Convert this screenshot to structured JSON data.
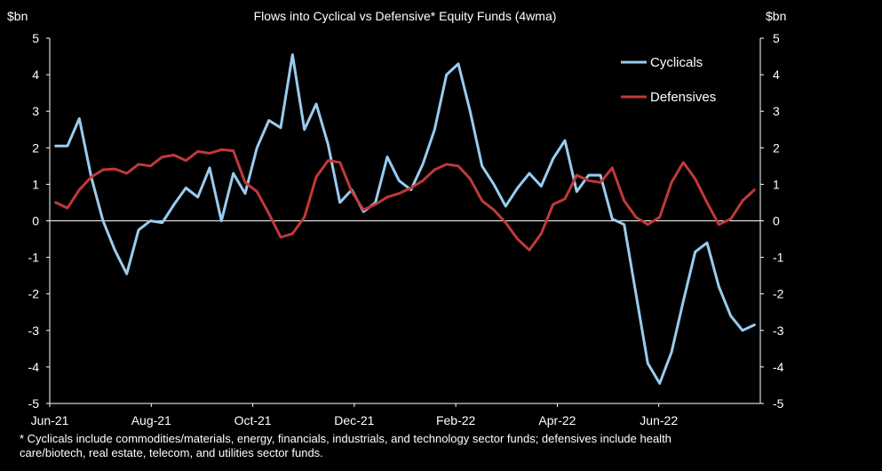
{
  "chart_data": {
    "type": "line",
    "title": "Flows into Cyclical vs Defensive*  Equity Funds (4wma)",
    "left_unit": "$bn",
    "right_unit": "$bn",
    "ylim": [
      -5,
      5
    ],
    "yticks": [
      5,
      4,
      3,
      2,
      1,
      0,
      -1,
      -2,
      -3,
      -4,
      -5
    ],
    "x_tick_labels": [
      "Jun-21",
      "Aug-21",
      "Oct-21",
      "Dec-21",
      "Feb-22",
      "Apr-22",
      "Jun-22"
    ],
    "grid": false,
    "legend_position": "top-right",
    "colors": {
      "Cyclicals": "#99ccee",
      "Defensives": "#c0393a"
    },
    "series": [
      {
        "name": "Cyclicals",
        "values": [
          2.05,
          2.05,
          2.8,
          1.2,
          0.0,
          -0.8,
          -1.45,
          -0.25,
          0.0,
          -0.05,
          0.45,
          0.9,
          0.65,
          1.45,
          0.0,
          1.3,
          0.75,
          2.0,
          2.75,
          2.55,
          4.55,
          2.5,
          3.2,
          2.1,
          0.5,
          0.85,
          0.25,
          0.5,
          1.75,
          1.1,
          0.85,
          1.55,
          2.5,
          4.0,
          4.3,
          3.0,
          1.5,
          1.0,
          0.4,
          0.9,
          1.3,
          0.95,
          1.7,
          2.2,
          0.8,
          1.25,
          1.25,
          0.05,
          -0.1,
          -2.0,
          -3.9,
          -4.45,
          -3.6,
          -2.2,
          -0.85,
          -0.6,
          -1.8,
          -2.6,
          -3.0,
          -2.85
        ]
      },
      {
        "name": "Defensives",
        "values": [
          0.5,
          0.35,
          0.85,
          1.2,
          1.4,
          1.42,
          1.3,
          1.55,
          1.5,
          1.75,
          1.8,
          1.65,
          1.9,
          1.85,
          1.95,
          1.92,
          1.05,
          0.8,
          0.2,
          -0.45,
          -0.35,
          0.1,
          1.2,
          1.65,
          1.6,
          0.8,
          0.3,
          0.45,
          0.65,
          0.75,
          0.9,
          1.1,
          1.4,
          1.55,
          1.5,
          1.15,
          0.55,
          0.3,
          -0.05,
          -0.5,
          -0.8,
          -0.35,
          0.45,
          0.6,
          1.25,
          1.1,
          1.05,
          1.45,
          0.55,
          0.1,
          -0.1,
          0.1,
          1.05,
          1.6,
          1.15,
          0.5,
          -0.1,
          0.05,
          0.55,
          0.85
        ]
      }
    ]
  },
  "footnote": {
    "line1": "* Cyclicals include commodities/materials, energy, financials, industrials, and technology sector funds; defensives include health",
    "line2": "care/biotech, real estate, telecom, and utilities sector funds."
  }
}
